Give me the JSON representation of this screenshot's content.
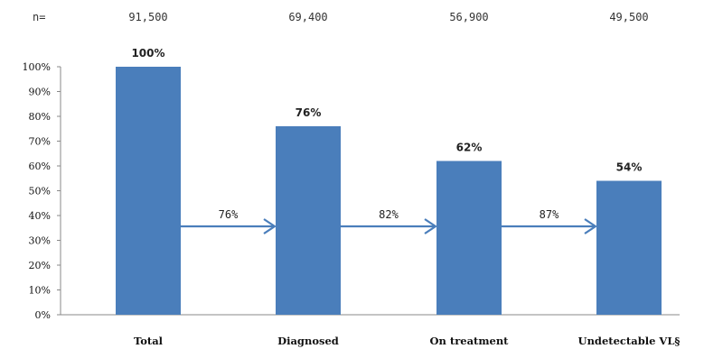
{
  "chart_data": {
    "type": "bar",
    "categories": [
      "Total",
      "Diagnosed",
      "On treatment",
      "Undetectable VL§"
    ],
    "values": [
      100,
      76,
      62,
      54
    ],
    "data_labels": [
      "100%",
      "76%",
      "62%",
      "54%"
    ],
    "n_prefix": "n=",
    "n_values": [
      "91,500",
      "69,400",
      "56,900",
      "49,500"
    ],
    "transitions": [
      {
        "from": "Total",
        "to": "Diagnosed",
        "label": "76%",
        "value": 76
      },
      {
        "from": "Diagnosed",
        "to": "On treatment",
        "label": "82%",
        "value": 82
      },
      {
        "from": "On treatment",
        "to": "Undetectable VL§",
        "label": "87%",
        "value": 87
      }
    ],
    "y_ticks": [
      "0%",
      "10%",
      "20%",
      "30%",
      "40%",
      "50%",
      "60%",
      "70%",
      "80%",
      "90%",
      "100%"
    ],
    "ylim": [
      0,
      100
    ],
    "grid": false,
    "legend": "none",
    "bar_color": "#4a7ebb",
    "arrow_color": "#4a7ebb",
    "axis_color": "#888888"
  }
}
